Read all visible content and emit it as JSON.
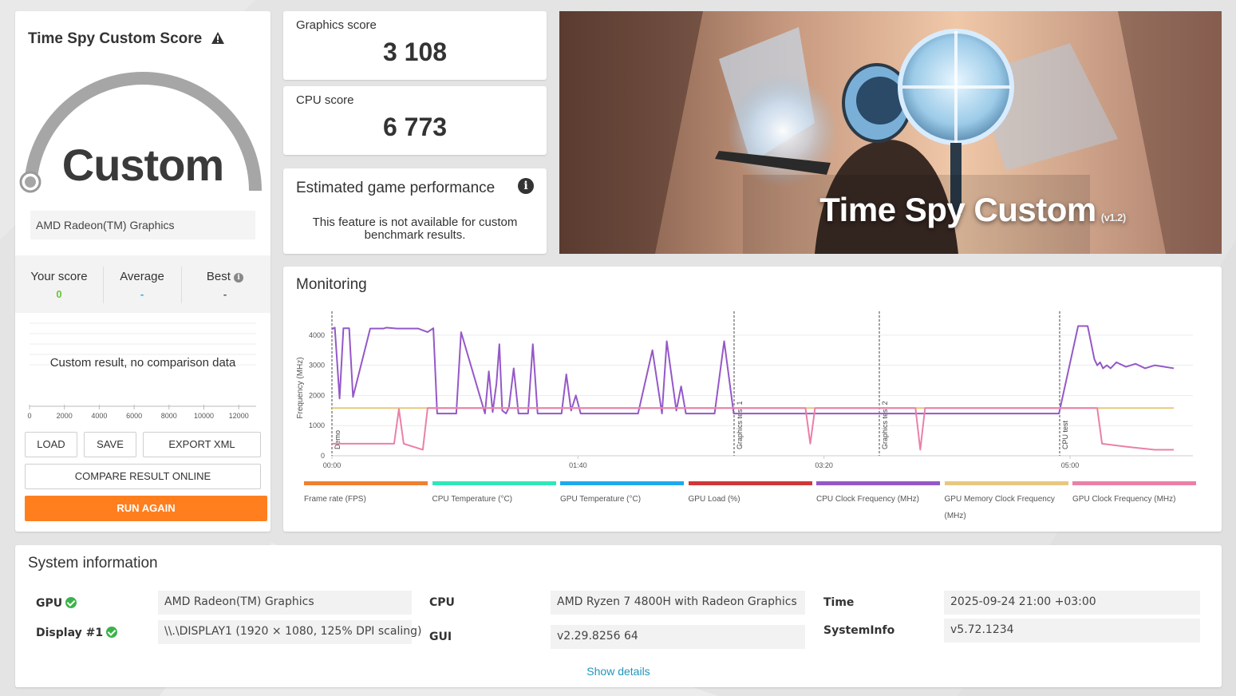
{
  "score_card": {
    "title": "Time Spy Custom Score",
    "gauge_label": "Custom",
    "gpu_name": "AMD Radeon(TM) Graphics",
    "your_score_label": "Your score",
    "your_score_value": "0",
    "average_label": "Average",
    "average_value": "-",
    "best_label": "Best",
    "best_value": "-",
    "no_comparison": "Custom result, no comparison data",
    "histogram_ticks": [
      "0",
      "2000",
      "4000",
      "6000",
      "8000",
      "10000",
      "12000"
    ],
    "buttons": {
      "load": "LOAD",
      "save": "SAVE",
      "export_xml": "EXPORT XML",
      "compare_online": "COMPARE RESULT ONLINE",
      "run_again": "RUN AGAIN"
    }
  },
  "graphics_score": {
    "label": "Graphics score",
    "value": "3 108"
  },
  "cpu_score": {
    "label": "CPU score",
    "value": "6 773"
  },
  "estimated_game_performance": {
    "title": "Estimated game performance",
    "text": "This feature is not available for custom benchmark results."
  },
  "hero": {
    "title": "Time Spy Custom",
    "version": "(v1.2)"
  },
  "monitoring": {
    "title": "Monitoring",
    "y_axis_label": "Frequency (MHz)",
    "y_ticks": [
      "0",
      "1000",
      "2000",
      "3000",
      "4000"
    ],
    "x_ticks": [
      "00:00",
      "01:40",
      "03:20",
      "05:00"
    ],
    "markers": [
      "Demo",
      "Graphics test 1",
      "Graphics test 2",
      "CPU test"
    ],
    "legend": [
      {
        "label": "Frame rate (FPS)",
        "color": "#f08030"
      },
      {
        "label": "CPU Temperature (°C)",
        "color": "#2ee8b8"
      },
      {
        "label": "GPU Temperature (°C)",
        "color": "#1eaaee"
      },
      {
        "label": "GPU Load (%)",
        "color": "#d03838"
      },
      {
        "label": "CPU Clock Frequency (MHz)",
        "color": "#9458c8"
      },
      {
        "label": "GPU Memory Clock Frequency (MHz)",
        "color": "#e8c880"
      },
      {
        "label": "GPU Clock Frequency (MHz)",
        "color": "#ea80a8"
      }
    ]
  },
  "chart_data": {
    "type": "line",
    "xlabel": "",
    "ylabel": "Frequency (MHz)",
    "ylim": [
      0,
      4500
    ],
    "x_ticks": [
      "00:00",
      "01:40",
      "03:20",
      "05:00"
    ],
    "grid": true,
    "legend_placement": "bottom",
    "series": [
      {
        "name": "CPU Clock Frequency (MHz)",
        "color": "#9458c8",
        "x": [
          0,
          3,
          8,
          12,
          18,
          22,
          40,
          45,
          54,
          57,
          68,
          75,
          80,
          90,
          100,
          106,
          110,
          113,
          130,
          135,
          160,
          164,
          168,
          172,
          175,
          178,
          182,
          185,
          190,
          195,
          205,
          210,
          215,
          222,
          240,
          245,
          250,
          255,
          260,
          262,
          270,
          275,
          280,
          300,
          320,
          335,
          345,
          350,
          360,
          365,
          370,
          375,
          380,
          395,
          400,
          410,
          420,
          425,
          430,
          438,
          442,
          446,
          452,
          456,
          460,
          470,
          475,
          480,
          485,
          490,
          495,
          500,
          505,
          510,
          515,
          520,
          530,
          535,
          540,
          545,
          550,
          560,
          575,
          578,
          582,
          585,
          590,
          595,
          600,
          605,
          610,
          615,
          620,
          630,
          640,
          650,
          670,
          700,
          760,
          780,
          790,
          797,
          800,
          803,
          806,
          810,
          814,
          820,
          830,
          840,
          850,
          860,
          880
        ],
        "y": [
          4200,
          4250,
          1900,
          4230,
          4230,
          1950,
          4220,
          4220,
          4220,
          4250,
          4220,
          4220,
          4220,
          4220,
          4100,
          4230,
          1400,
          1400,
          1400,
          4100,
          1400,
          2800,
          1450,
          2400,
          3700,
          1500,
          1400,
          1600,
          2900,
          1400,
          1400,
          3700,
          1400,
          1400,
          1400,
          2700,
          1500,
          2000,
          1400,
          1400,
          1400,
          1400,
          1400,
          1400,
          1400,
          3500,
          1400,
          3800,
          1500,
          2300,
          1400,
          1400,
          1400,
          1400,
          1400,
          3800,
          1400,
          1400,
          1400,
          1400,
          1400,
          1400,
          1400,
          1400,
          1400,
          1400,
          1400,
          1400,
          1400,
          1400,
          1400,
          1400,
          1400,
          1400,
          1400,
          1400,
          1400,
          1400,
          1400,
          1400,
          1400,
          1400,
          1400,
          1400,
          1400,
          1400,
          1400,
          1400,
          1400,
          1400,
          1400,
          1400,
          1400,
          1400,
          1400,
          1400,
          1400,
          1400,
          1400,
          4300,
          4300,
          3200,
          3000,
          3100,
          2900,
          3000,
          2900,
          3100,
          2950,
          3050,
          2900,
          3000,
          2900
        ],
        "note": ""
      },
      {
        "name": "GPU Memory Clock Frequency (MHz)",
        "color": "#e8c880",
        "x": [
          0,
          880
        ],
        "y": [
          1580,
          1580
        ]
      },
      {
        "name": "GPU Clock Frequency (MHz)",
        "color": "#ea80a8",
        "x": [
          0,
          3,
          65,
          70,
          75,
          95,
          100,
          160,
          495,
          500,
          505,
          610,
          615,
          620,
          800,
          805,
          830,
          860,
          880
        ],
        "y": [
          400,
          400,
          400,
          1550,
          400,
          200,
          1580,
          1580,
          1580,
          400,
          1580,
          1580,
          200,
          1580,
          1580,
          400,
          300,
          200,
          200
        ]
      }
    ]
  },
  "system_info": {
    "title": "System information",
    "gpu_label": "GPU",
    "gpu_value": "AMD Radeon(TM) Graphics",
    "display_label": "Display #1",
    "display_value": "\\\\.\\DISPLAY1 (1920 × 1080, 125% DPI scaling)",
    "cpu_label": "CPU",
    "cpu_value": "AMD Ryzen 7 4800H with Radeon Graphics",
    "gui_label": "GUI",
    "gui_value": "v2.29.8256 64",
    "time_label": "Time",
    "time_value": "2025-09-24 21:00 +03:00",
    "systeminfo_label": "SystemInfo",
    "systeminfo_value": "v5.72.1234",
    "show_details": "Show details"
  }
}
